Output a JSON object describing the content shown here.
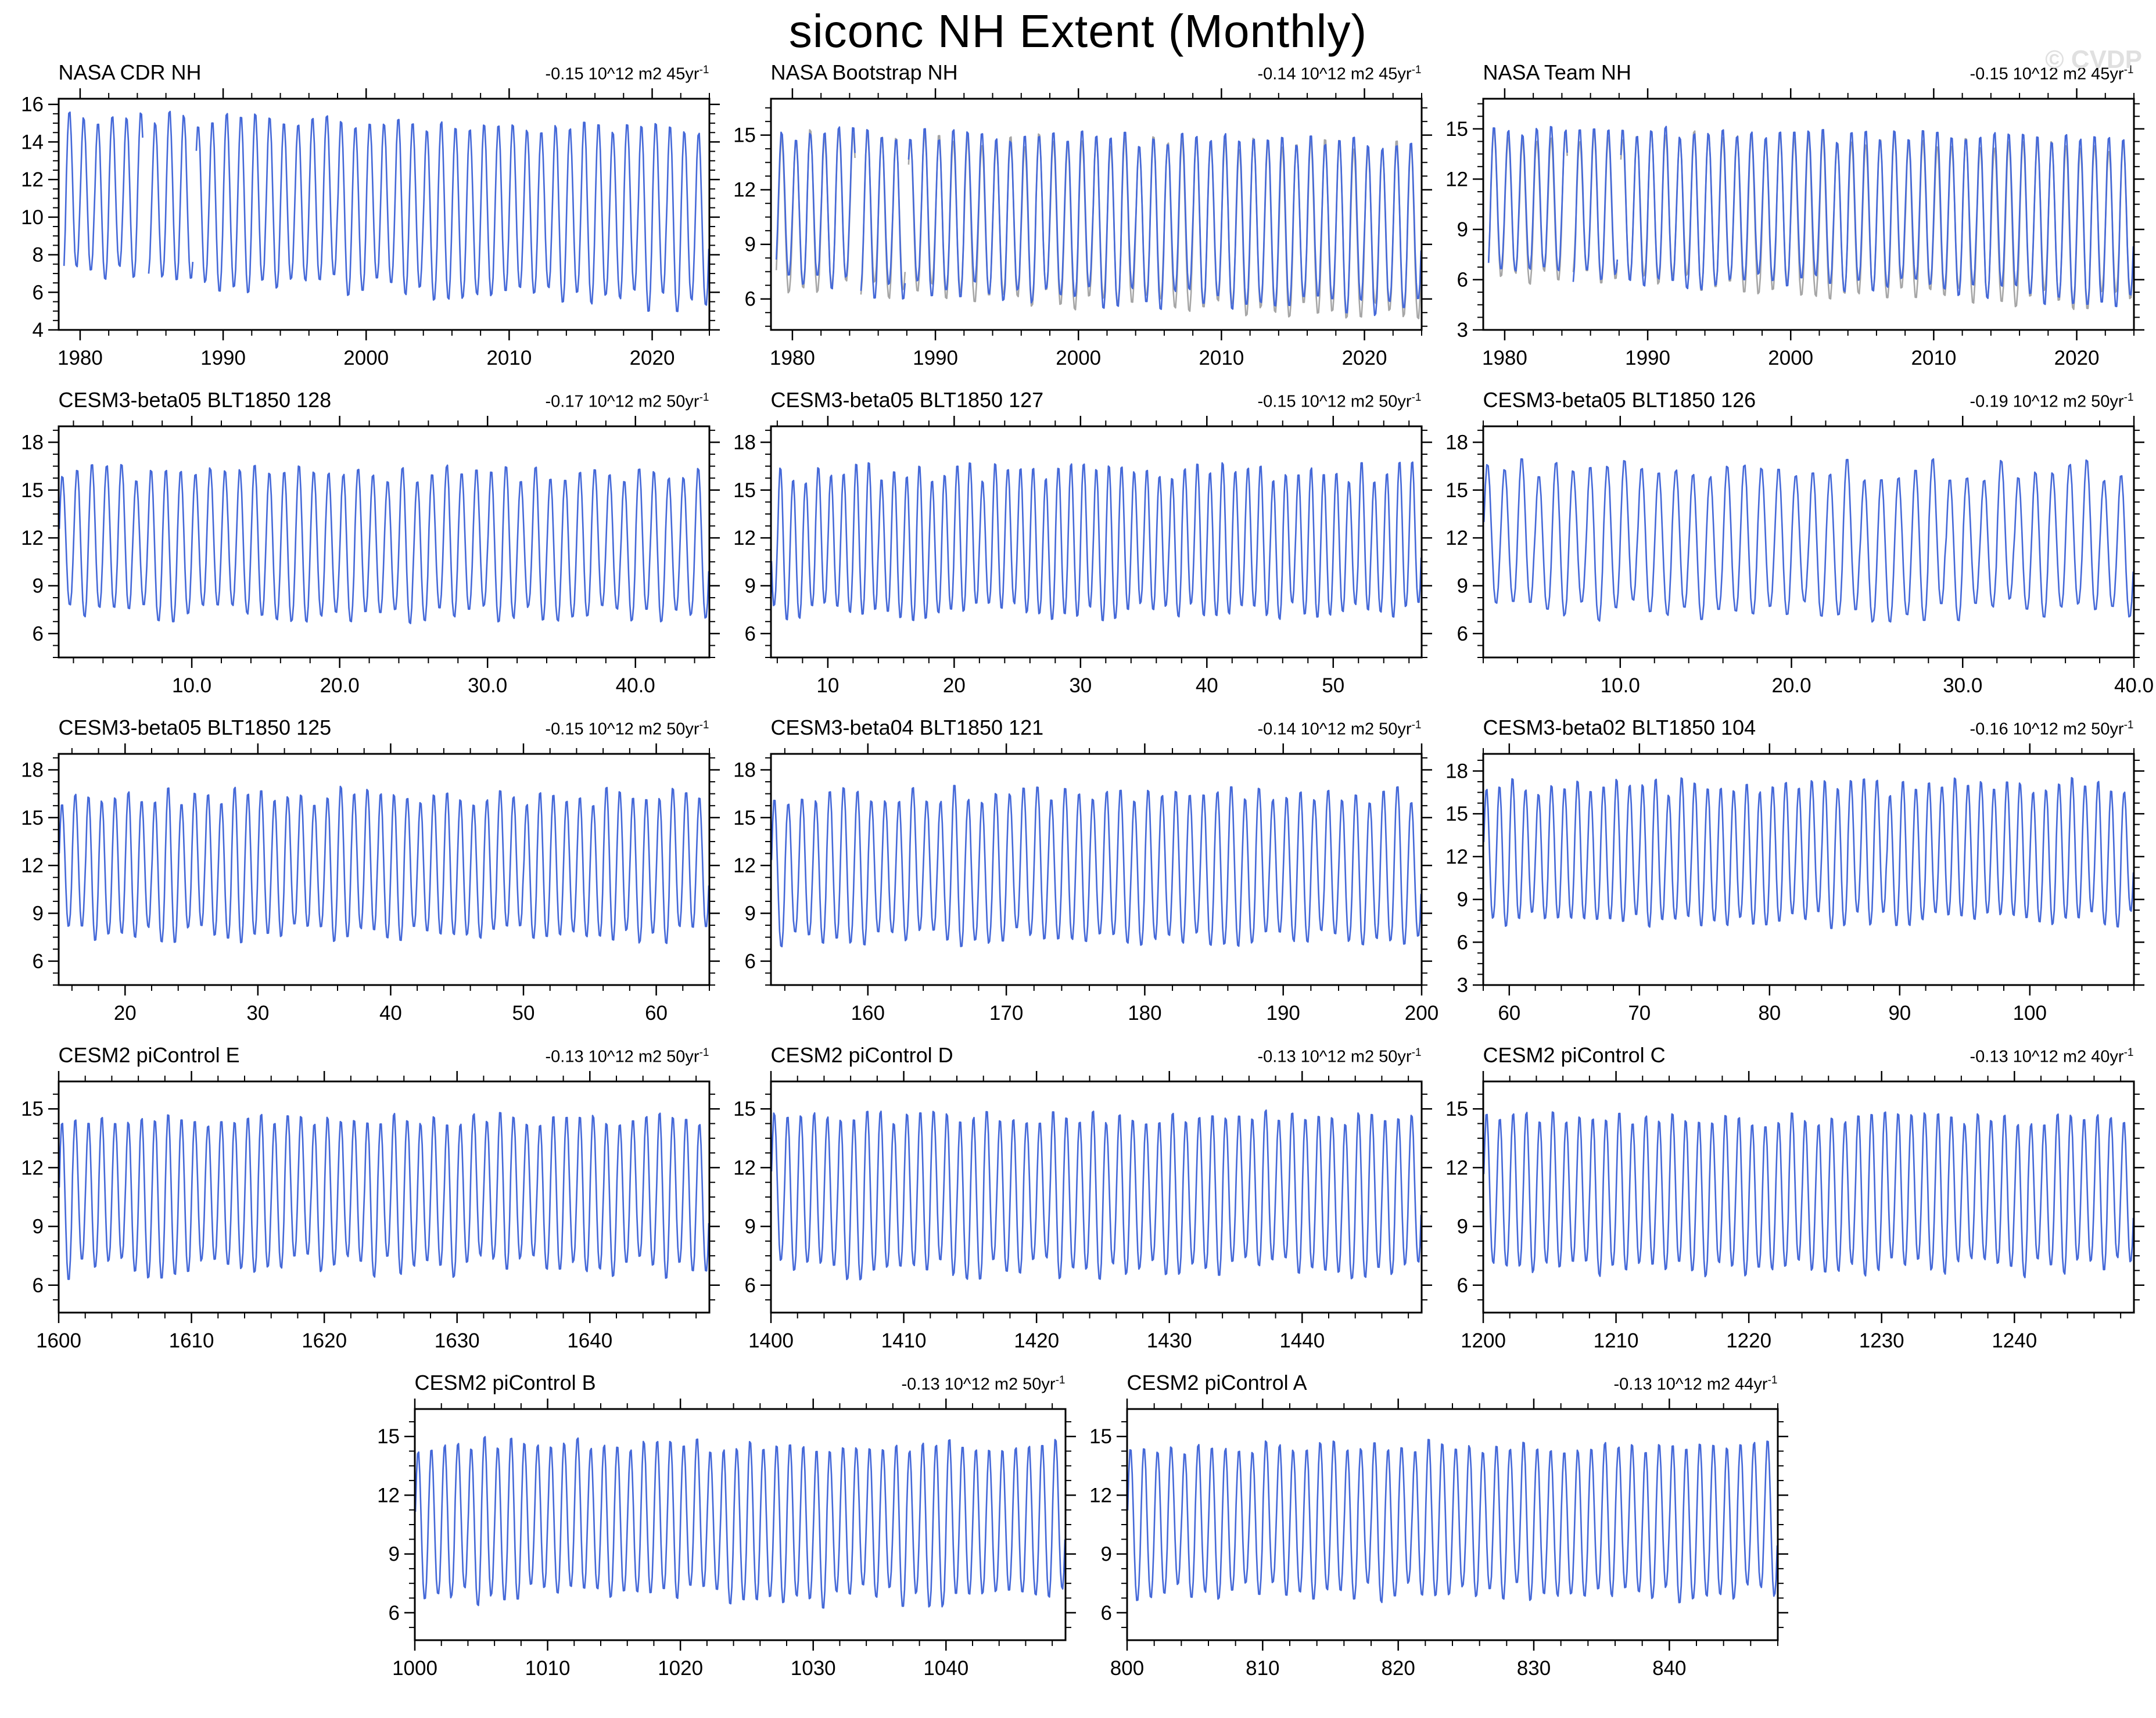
{
  "page": {
    "title": "siconc NH Extent (Monthly)",
    "watermark": "© CVDP"
  },
  "colors": {
    "line": "#4468d8",
    "overlay": "#a6a6a6",
    "axis": "#000000",
    "watermark": "#e0e0e0"
  },
  "chart_data": [
    {
      "type": "line",
      "title": "NASA CDR NH",
      "trend_value": "-0.15 10^12 m2 45yr",
      "trend_sup": "-1",
      "xlim": [
        1978.5,
        2024
      ],
      "xticks": [
        1980,
        1990,
        2000,
        2010,
        2020
      ],
      "xtick_labels": [
        "1980",
        "1990",
        "2000",
        "2010",
        "2020"
      ],
      "xminor_step": 2,
      "ylim": [
        4,
        16.3
      ],
      "yticks": [
        4,
        6,
        8,
        10,
        12,
        14,
        16
      ],
      "ytick_labels": [
        "4",
        "6",
        "8",
        "10",
        "12",
        "14",
        "16"
      ],
      "yminor_step": 0.5,
      "series": {
        "name": "NASA CDR NH extent",
        "units": "10^12 m2",
        "max_mean": 15.5,
        "max_var": 0.4,
        "min_mean": 6.9,
        "min_var": 0.6,
        "max_trend": -0.7,
        "min_trend": -1.6,
        "start": 1978.85,
        "gaps": [
          [
            1984.45,
            1984.78
          ],
          [
            1987.95,
            1988.09
          ]
        ]
      },
      "overlay_reference": false
    },
    {
      "type": "line",
      "title": "NASA Bootstrap NH",
      "trend_value": "-0.14 10^12 m2 45yr",
      "trend_sup": "-1",
      "xlim": [
        1978.5,
        2024
      ],
      "xticks": [
        1980,
        1990,
        2000,
        2010,
        2020
      ],
      "xtick_labels": [
        "1980",
        "1990",
        "2000",
        "2010",
        "2020"
      ],
      "xminor_step": 2,
      "ylim": [
        4.3,
        17
      ],
      "yticks": [
        6,
        9,
        12,
        15
      ],
      "ytick_labels": [
        "6",
        "9",
        "12",
        "15"
      ],
      "yminor_step": 0.75,
      "series": {
        "name": "NASA Bootstrap NH extent",
        "units": "10^12 m2",
        "max_mean": 15.3,
        "max_var": 0.4,
        "min_mean": 6.8,
        "min_var": 0.6,
        "max_trend": -0.6,
        "min_trend": -1.5,
        "start": 1978.85,
        "gaps": [
          [
            1984.45,
            1984.78
          ],
          [
            1987.95,
            1988.09
          ]
        ]
      },
      "overlay_reference": true
    },
    {
      "type": "line",
      "title": "NASA Team NH",
      "trend_value": "-0.15 10^12 m2 45yr",
      "trend_sup": "-1",
      "xlim": [
        1978.5,
        2024
      ],
      "xticks": [
        1980,
        1990,
        2000,
        2010,
        2020
      ],
      "xtick_labels": [
        "1980",
        "1990",
        "2000",
        "2010",
        "2020"
      ],
      "xminor_step": 2,
      "ylim": [
        3,
        16.8
      ],
      "yticks": [
        3,
        6,
        9,
        12,
        15
      ],
      "ytick_labels": [
        "3",
        "6",
        "9",
        "12",
        "15"
      ],
      "yminor_step": 0.75,
      "series": {
        "name": "NASA Team NH extent",
        "units": "10^12 m2",
        "max_mean": 15.1,
        "max_var": 0.4,
        "min_mean": 6.4,
        "min_var": 0.6,
        "max_trend": -0.7,
        "min_trend": -1.6,
        "start": 1978.85,
        "gaps": [
          [
            1984.45,
            1984.78
          ],
          [
            1987.95,
            1988.09
          ]
        ]
      },
      "overlay_reference": true
    },
    {
      "type": "line",
      "title": "CESM3-beta05 BLT1850 128",
      "trend_value": "-0.17 10^12 m2 50yr",
      "trend_sup": "-1",
      "xlim": [
        1,
        45
      ],
      "xticks": [
        10,
        20,
        30,
        40
      ],
      "xtick_labels": [
        "10.0",
        "20.0",
        "30.0",
        "40.0"
      ],
      "xminor_step": 2,
      "ylim": [
        4.5,
        19
      ],
      "yticks": [
        6,
        9,
        12,
        15,
        18
      ],
      "ytick_labels": [
        "6",
        "9",
        "12",
        "15",
        "18"
      ],
      "yminor_step": 0.75,
      "series": {
        "name": "CESM3-beta05 BLT1850 128 NH extent",
        "units": "10^12 m2",
        "max_mean": 16.2,
        "max_var": 0.6,
        "min_mean": 7.2,
        "min_var": 0.6,
        "max_trend": 0,
        "min_trend": 0,
        "gaps": []
      },
      "overlay_reference": false
    },
    {
      "type": "line",
      "title": "CESM3-beta05 BLT1850 127",
      "trend_value": "-0.15 10^12 m2 50yr",
      "trend_sup": "-1",
      "xlim": [
        5.5,
        57
      ],
      "xticks": [
        10,
        20,
        30,
        40,
        50
      ],
      "xtick_labels": [
        "10",
        "20",
        "30",
        "40",
        "50"
      ],
      "xminor_step": 2,
      "ylim": [
        4.5,
        19
      ],
      "yticks": [
        6,
        9,
        12,
        15,
        18
      ],
      "ytick_labels": [
        "6",
        "9",
        "12",
        "15",
        "18"
      ],
      "yminor_step": 0.75,
      "series": {
        "name": "CESM3-beta05 BLT1850 127 NH extent",
        "units": "10^12 m2",
        "max_mean": 16.2,
        "max_var": 0.7,
        "min_mean": 7.3,
        "min_var": 0.6,
        "max_trend": 0,
        "min_trend": 0,
        "gaps": []
      },
      "overlay_reference": false
    },
    {
      "type": "line",
      "title": "CESM3-beta05 BLT1850 126",
      "trend_value": "-0.19 10^12 m2 50yr",
      "trend_sup": "-1",
      "xlim": [
        2,
        40
      ],
      "xticks": [
        10,
        20,
        30,
        40
      ],
      "xtick_labels": [
        "10.0",
        "20.0",
        "30.0",
        "40.0"
      ],
      "xminor_step": 2,
      "ylim": [
        4.5,
        19
      ],
      "yticks": [
        6,
        9,
        12,
        15,
        18
      ],
      "ytick_labels": [
        "6",
        "9",
        "12",
        "15",
        "18"
      ],
      "yminor_step": 0.75,
      "series": {
        "name": "CESM3-beta05 BLT1850 126 NH extent",
        "units": "10^12 m2",
        "max_mean": 16.4,
        "max_var": 0.7,
        "min_mean": 7.4,
        "min_var": 0.7,
        "max_trend": 0,
        "min_trend": 0,
        "gaps": []
      },
      "overlay_reference": false
    },
    {
      "type": "line",
      "title": "CESM3-beta05 BLT1850 125",
      "trend_value": "-0.15 10^12 m2 50yr",
      "trend_sup": "-1",
      "xlim": [
        15,
        64
      ],
      "xticks": [
        20,
        30,
        40,
        50,
        60
      ],
      "xtick_labels": [
        "20",
        "30",
        "40",
        "50",
        "60"
      ],
      "xminor_step": 2,
      "ylim": [
        4.5,
        19
      ],
      "yticks": [
        6,
        9,
        12,
        15,
        18
      ],
      "ytick_labels": [
        "6",
        "9",
        "12",
        "15",
        "18"
      ],
      "yminor_step": 0.75,
      "series": {
        "name": "CESM3-beta05 BLT1850 125 NH extent",
        "units": "10^12 m2",
        "max_mean": 16.5,
        "max_var": 0.6,
        "min_mean": 7.6,
        "min_var": 0.6,
        "max_trend": 0,
        "min_trend": 0,
        "gaps": []
      },
      "overlay_reference": false
    },
    {
      "type": "line",
      "title": "CESM3-beta04 BLT1850 121",
      "trend_value": "-0.14 10^12 m2 50yr",
      "trend_sup": "-1",
      "xlim": [
        153,
        200
      ],
      "xticks": [
        160,
        170,
        180,
        190,
        200
      ],
      "xtick_labels": [
        "160",
        "170",
        "180",
        "190",
        "200"
      ],
      "xminor_step": 2,
      "ylim": [
        4.5,
        19
      ],
      "yticks": [
        6,
        9,
        12,
        15,
        18
      ],
      "ytick_labels": [
        "6",
        "9",
        "12",
        "15",
        "18"
      ],
      "yminor_step": 0.75,
      "series": {
        "name": "CESM3-beta04 BLT1850 121 NH extent",
        "units": "10^12 m2",
        "max_mean": 16.6,
        "max_var": 0.6,
        "min_mean": 7.4,
        "min_var": 0.6,
        "max_trend": 0,
        "min_trend": 0,
        "gaps": []
      },
      "overlay_reference": false
    },
    {
      "type": "line",
      "title": "CESM3-beta02 BLT1850 104",
      "trend_value": "-0.16 10^12 m2 50yr",
      "trend_sup": "-1",
      "xlim": [
        58,
        108
      ],
      "xticks": [
        60,
        70,
        80,
        90,
        100
      ],
      "xtick_labels": [
        "60",
        "70",
        "80",
        "90",
        "100"
      ],
      "xminor_step": 2,
      "ylim": [
        3,
        19.2
      ],
      "yticks": [
        3,
        6,
        9,
        12,
        15,
        18
      ],
      "ytick_labels": [
        "3",
        "6",
        "9",
        "12",
        "15",
        "18"
      ],
      "yminor_step": 0.75,
      "series": {
        "name": "CESM3-beta02 BLT1850 104 NH extent",
        "units": "10^12 m2",
        "max_mean": 17,
        "max_var": 0.7,
        "min_mean": 7.5,
        "min_var": 0.7,
        "max_trend": 0,
        "min_trend": 0,
        "gaps": []
      },
      "overlay_reference": false
    },
    {
      "type": "line",
      "title": "CESM2 piControl E",
      "trend_value": "-0.13 10^12 m2 50yr",
      "trend_sup": "-1",
      "xlim": [
        1600,
        1649
      ],
      "xticks": [
        1600,
        1610,
        1620,
        1630,
        1640
      ],
      "xtick_labels": [
        "1600",
        "1610",
        "1620",
        "1630",
        "1640"
      ],
      "xminor_step": 2,
      "ylim": [
        4.6,
        16.4
      ],
      "yticks": [
        6,
        9,
        12,
        15
      ],
      "ytick_labels": [
        "6",
        "9",
        "12",
        "15"
      ],
      "yminor_step": 0.75,
      "series": {
        "name": "CESM2 piControl E NH extent",
        "units": "10^12 m2",
        "max_mean": 14.6,
        "max_var": 0.35,
        "min_mean": 6.9,
        "min_var": 0.6,
        "max_trend": 0,
        "min_trend": 0,
        "gaps": []
      },
      "overlay_reference": false
    },
    {
      "type": "line",
      "title": "CESM2 piControl D",
      "trend_value": "-0.13 10^12 m2 50yr",
      "trend_sup": "-1",
      "xlim": [
        1400,
        1449
      ],
      "xticks": [
        1400,
        1410,
        1420,
        1430,
        1440
      ],
      "xtick_labels": [
        "1400",
        "1410",
        "1420",
        "1430",
        "1440"
      ],
      "xminor_step": 2,
      "ylim": [
        4.6,
        16.4
      ],
      "yticks": [
        6,
        9,
        12,
        15
      ],
      "ytick_labels": [
        "6",
        "9",
        "12",
        "15"
      ],
      "yminor_step": 0.75,
      "series": {
        "name": "CESM2 piControl D NH extent",
        "units": "10^12 m2",
        "max_mean": 14.7,
        "max_var": 0.35,
        "min_mean": 6.8,
        "min_var": 0.6,
        "max_trend": 0,
        "min_trend": 0,
        "gaps": []
      },
      "overlay_reference": false
    },
    {
      "type": "line",
      "title": "CESM2 piControl C",
      "trend_value": "-0.13 10^12 m2 40yr",
      "trend_sup": "-1",
      "xlim": [
        1200,
        1249
      ],
      "xticks": [
        1200,
        1210,
        1220,
        1230,
        1240
      ],
      "xtick_labels": [
        "1200",
        "1210",
        "1220",
        "1230",
        "1240"
      ],
      "xminor_step": 2,
      "ylim": [
        4.6,
        16.4
      ],
      "yticks": [
        6,
        9,
        12,
        15
      ],
      "ytick_labels": [
        "6",
        "9",
        "12",
        "15"
      ],
      "yminor_step": 0.75,
      "series": {
        "name": "CESM2 piControl C NH extent",
        "units": "10^12 m2",
        "max_mean": 14.6,
        "max_var": 0.35,
        "min_mean": 6.9,
        "min_var": 0.55,
        "max_trend": 0,
        "min_trend": 0,
        "gaps": []
      },
      "overlay_reference": false
    },
    {
      "type": "line",
      "title": "CESM2 piControl B",
      "trend_value": "-0.13 10^12 m2 50yr",
      "trend_sup": "-1",
      "xlim": [
        1000,
        1049
      ],
      "xticks": [
        1000,
        1010,
        1020,
        1030,
        1040
      ],
      "xtick_labels": [
        "1000",
        "1010",
        "1020",
        "1030",
        "1040"
      ],
      "xminor_step": 2,
      "ylim": [
        4.6,
        16.4
      ],
      "yticks": [
        6,
        9,
        12,
        15
      ],
      "ytick_labels": [
        "6",
        "9",
        "12",
        "15"
      ],
      "yminor_step": 0.75,
      "series": {
        "name": "CESM2 piControl B NH extent",
        "units": "10^12 m2",
        "max_mean": 14.7,
        "max_var": 0.4,
        "min_mean": 6.8,
        "min_var": 0.6,
        "max_trend": 0,
        "min_trend": 0,
        "gaps": []
      },
      "overlay_reference": false
    },
    {
      "type": "line",
      "title": "CESM2 piControl A",
      "trend_value": "-0.13 10^12 m2 44yr",
      "trend_sup": "-1",
      "xlim": [
        800,
        848
      ],
      "xticks": [
        800,
        810,
        820,
        830,
        840
      ],
      "xtick_labels": [
        "800",
        "810",
        "820",
        "830",
        "840"
      ],
      "xminor_step": 2,
      "ylim": [
        4.6,
        16.4
      ],
      "yticks": [
        6,
        9,
        12,
        15
      ],
      "ytick_labels": [
        "6",
        "9",
        "12",
        "15"
      ],
      "yminor_step": 0.75,
      "series": {
        "name": "CESM2 piControl A NH extent",
        "units": "10^12 m2",
        "max_mean": 14.6,
        "max_var": 0.35,
        "min_mean": 7,
        "min_var": 0.55,
        "max_trend": 0,
        "min_trend": 0,
        "gaps": []
      },
      "overlay_reference": false
    }
  ],
  "layout_rows": [
    [
      0,
      1,
      2
    ],
    [
      3,
      4,
      5
    ],
    [
      6,
      7,
      8
    ],
    [
      9,
      10,
      11
    ],
    [
      12,
      13
    ]
  ]
}
